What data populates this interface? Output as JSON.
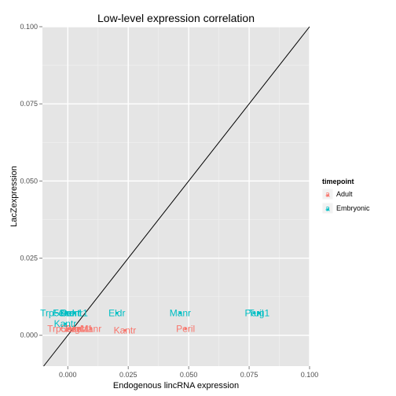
{
  "chart_data": {
    "type": "scatter",
    "title": "Low-level expression correlation",
    "xlabel": "Endogenous lincRNA expression",
    "ylabel": "LacZexpression",
    "xlim": [
      -0.0105,
      0.1
    ],
    "ylim": [
      -0.01,
      0.1
    ],
    "x_ticks": [
      0.0,
      0.025,
      0.05,
      0.075,
      0.1
    ],
    "x_tick_labels": [
      "0.000",
      "0.025",
      "0.050",
      "0.075",
      "0.100"
    ],
    "y_ticks": [
      0.0,
      0.025,
      0.05,
      0.075,
      0.1
    ],
    "y_tick_labels": [
      "0.000",
      "0.025",
      "0.050",
      "0.075",
      "0.100"
    ],
    "grid": true,
    "reference_line": {
      "type": "identity",
      "color": "#000000"
    },
    "legend": {
      "title": "timepoint",
      "position": "right",
      "entries": [
        {
          "label": "Adult",
          "color": "#F8766D"
        },
        {
          "label": "Embryonic",
          "color": "#00BFC4"
        }
      ]
    },
    "series": [
      {
        "name": "Adult",
        "color": "#F8766D",
        "points": [
          {
            "label": "Trp53cor1",
            "x": 0.0003,
            "y": 0.0021
          },
          {
            "label": "Celrr",
            "x": 0.0011,
            "y": 0.0021
          },
          {
            "label": "Tug1",
            "x": 0.0028,
            "y": 0.0021
          },
          {
            "label": "Pantr1",
            "x": 0.0046,
            "y": 0.0021
          },
          {
            "label": "Manr",
            "x": 0.0095,
            "y": 0.0021
          },
          {
            "label": "Kantr",
            "x": 0.0236,
            "y": 0.0016
          },
          {
            "label": "Peril",
            "x": 0.0487,
            "y": 0.0021
          }
        ]
      },
      {
        "name": "Embryonic",
        "color": "#00BFC4",
        "points": [
          {
            "label": "Trp53cor1",
            "x": -0.0026,
            "y": 0.0072
          },
          {
            "label": "Fendrr",
            "x": -0.0005,
            "y": 0.0072
          },
          {
            "label": "Pantr1",
            "x": 0.0026,
            "y": 0.0072
          },
          {
            "label": "Celrr",
            "x": 0.0011,
            "y": 0.0072
          },
          {
            "label": "Kantr",
            "x": -0.0011,
            "y": 0.0037
          },
          {
            "label": "Eldr",
            "x": 0.0203,
            "y": 0.0072
          },
          {
            "label": "Manr",
            "x": 0.0465,
            "y": 0.0072
          },
          {
            "label": "Peril",
            "x": 0.0771,
            "y": 0.0072
          },
          {
            "label": "Tug1",
            "x": 0.0791,
            "y": 0.0072
          }
        ]
      }
    ]
  }
}
